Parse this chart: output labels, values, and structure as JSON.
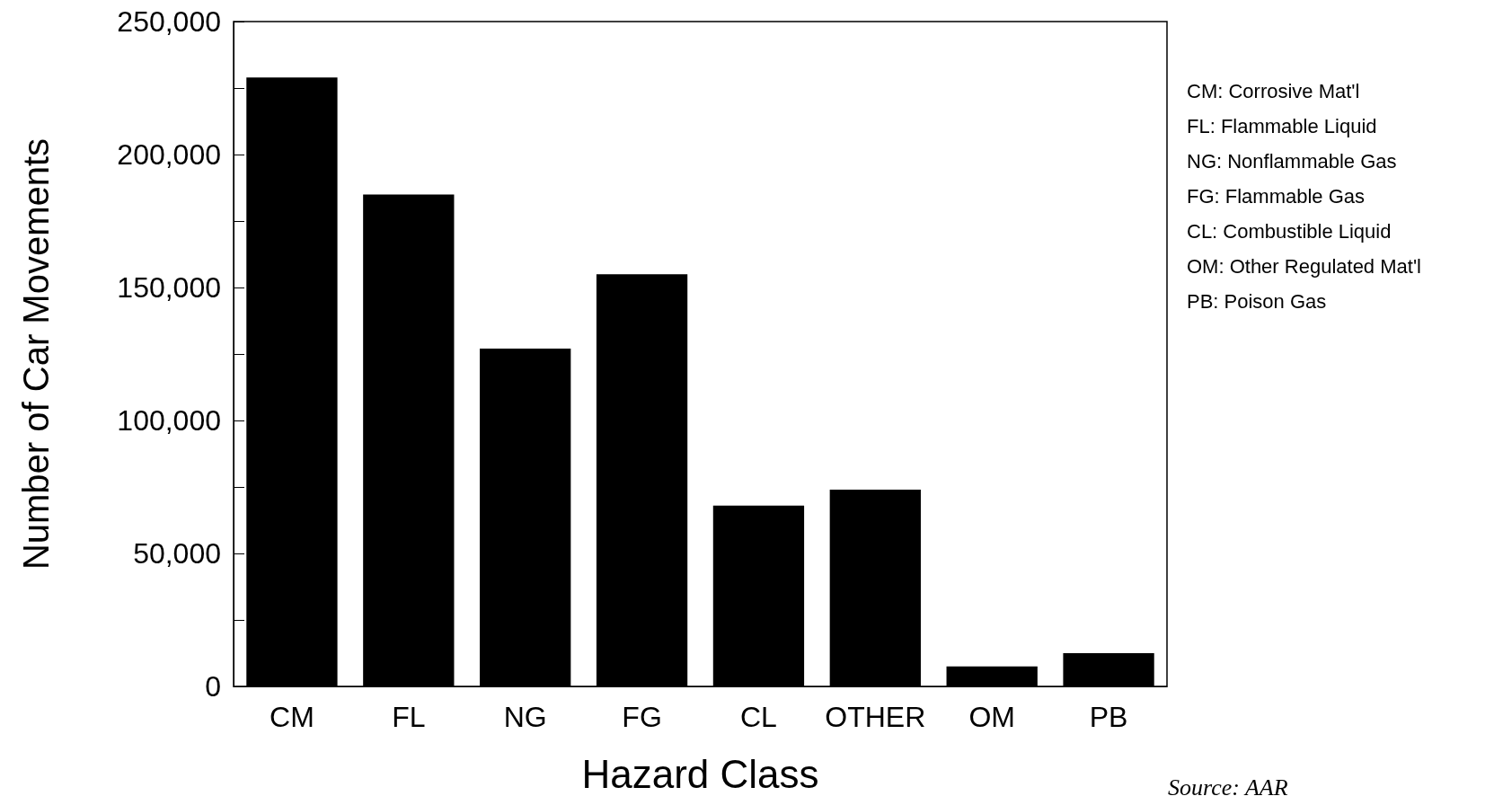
{
  "chart_data": {
    "type": "bar",
    "xlabel": "Hazard Class",
    "ylabel": "Number of Car Movements",
    "categories": [
      "CM",
      "FL",
      "NG",
      "FG",
      "CL",
      "OTHER",
      "OM",
      "PB"
    ],
    "values": [
      229000,
      185000,
      127000,
      155000,
      68000,
      74000,
      7500,
      12500
    ],
    "color": "#000000",
    "ylim": [
      0,
      250000
    ],
    "yticks": [
      0,
      {
        "value": 25000,
        "label": null
      },
      {
        "value": 50000,
        "label": "50,000"
      },
      {
        "value": 75000,
        "label": null
      },
      {
        "value": 100000,
        "label": "100,000"
      },
      {
        "value": 125000,
        "label": null
      },
      {
        "value": 150000,
        "label": "150,000"
      },
      {
        "value": 175000,
        "label": null
      },
      {
        "value": 200000,
        "label": "200,000"
      },
      {
        "value": 225000,
        "label": null
      },
      {
        "value": 250000,
        "label": "250,000"
      }
    ],
    "grid": false,
    "annotations": [
      "CM: Corrosive Mat'l",
      "FL: Flammable Liquid",
      "NG: Nonflammable Gas",
      "FG: Flammable Gas",
      "CL: Combustible Liquid",
      "OM: Other Regulated Mat'l",
      "PB: Poison Gas",
      "Source: AAR"
    ]
  }
}
